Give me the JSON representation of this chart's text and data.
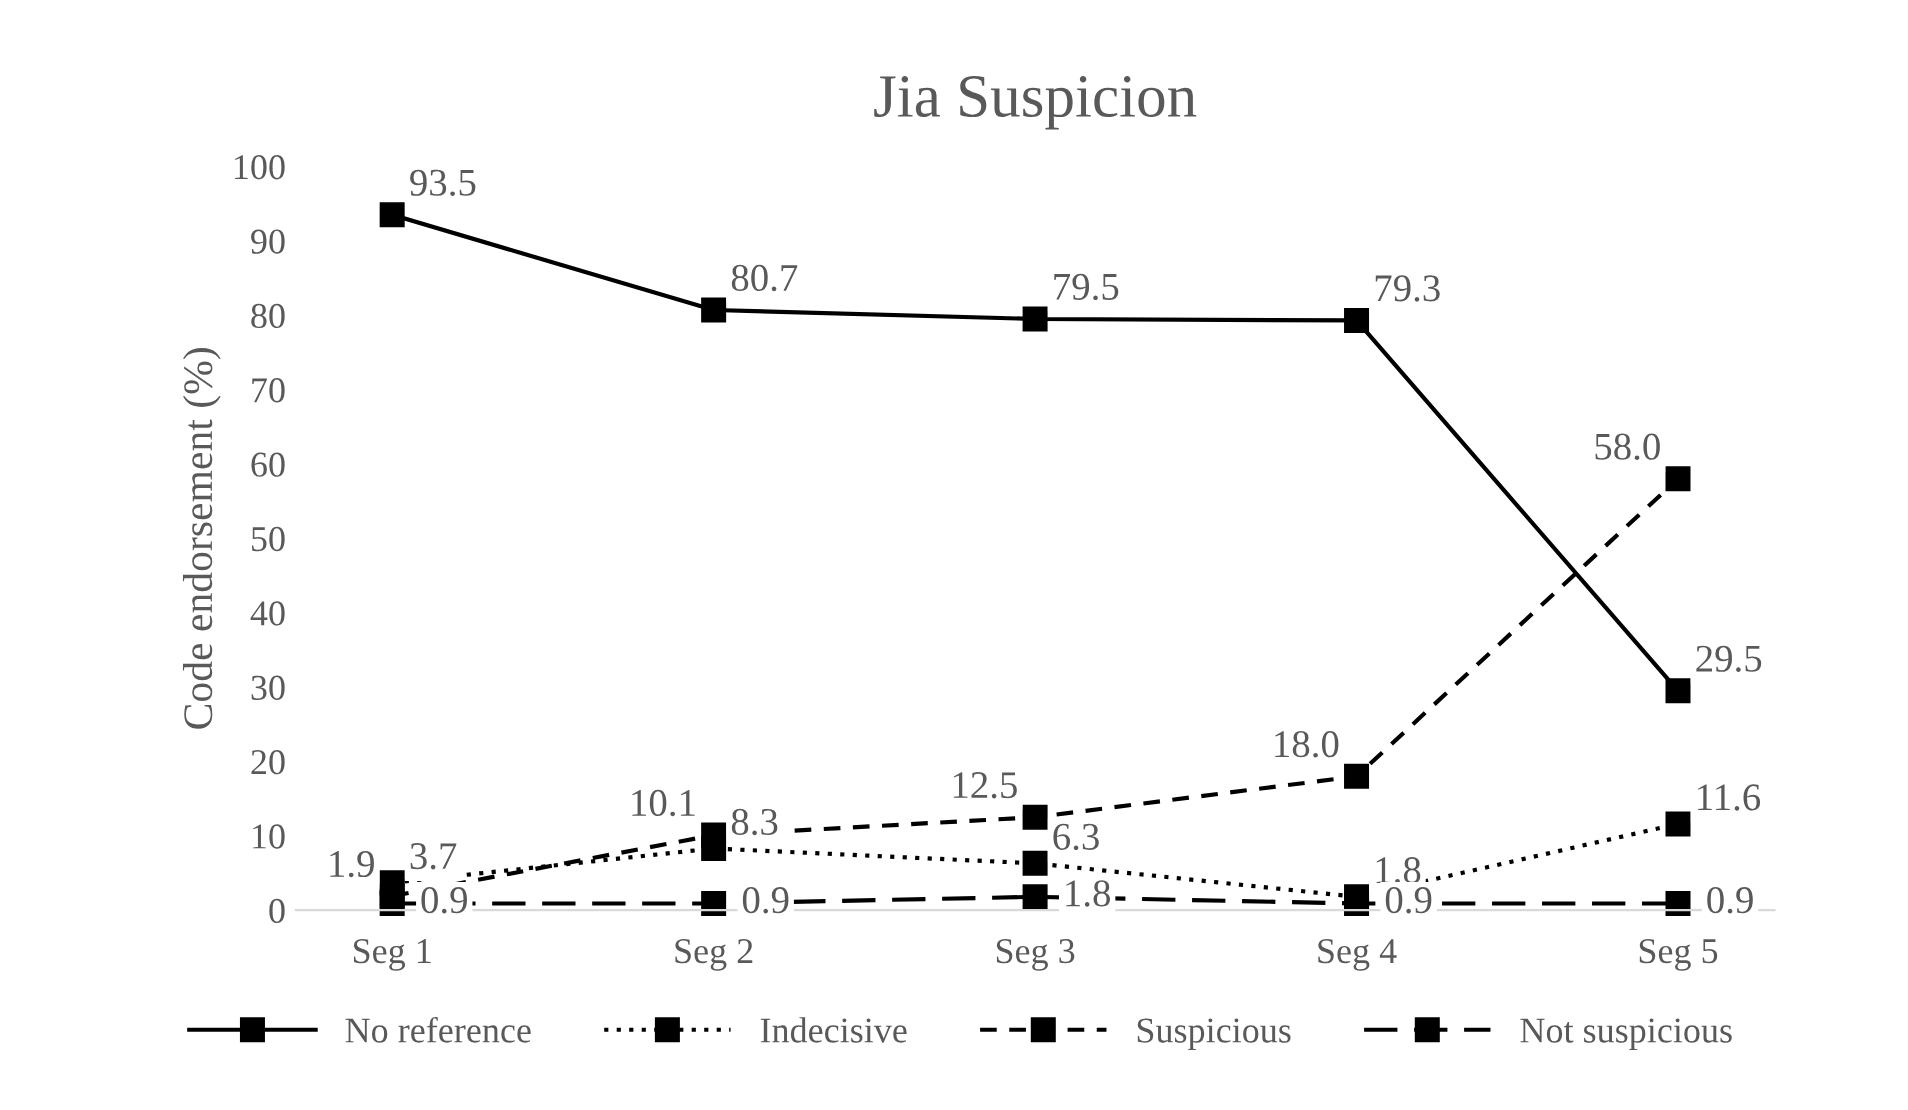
{
  "chart_data": {
    "type": "line",
    "title": "Jia Suspicion",
    "ylabel": "Code endorsement (%)",
    "categories": [
      "Seg 1",
      "Seg 2",
      "Seg 3",
      "Seg 4",
      "Seg 5"
    ],
    "ylim": [
      0,
      100
    ],
    "yticks": [
      0,
      10,
      20,
      30,
      40,
      50,
      60,
      70,
      80,
      90,
      100
    ],
    "grid": false,
    "legend": "bottom",
    "marker": "square",
    "series": [
      {
        "name": "No reference",
        "color": "#000000",
        "line_style": "solid",
        "values": [
          93.5,
          80.7,
          79.5,
          79.3,
          29.5
        ],
        "value_labels": [
          "93.5",
          "80.7",
          "79.5",
          "79.3",
          "29.5"
        ]
      },
      {
        "name": "Indecisive",
        "color": "#000000",
        "line_style": "dotted",
        "values": [
          3.7,
          8.3,
          6.3,
          1.8,
          11.6
        ],
        "value_labels": [
          "3.7",
          "8.3",
          "6.3",
          "1.8",
          "11.6"
        ]
      },
      {
        "name": "Suspicious",
        "color": "#000000",
        "line_style": "dashed",
        "values": [
          1.9,
          10.1,
          12.5,
          18.0,
          58.0
        ],
        "value_labels": [
          "1.9",
          "10.1",
          "12.5",
          "18.0",
          "58.0"
        ]
      },
      {
        "name": "Not suspicious",
        "color": "#000000",
        "line_style": "longdash",
        "values": [
          0.9,
          0.9,
          1.8,
          0.9,
          0.9
        ],
        "value_labels": [
          "0.9",
          "0.9",
          "1.8",
          "0.9",
          "0.9"
        ]
      }
    ]
  }
}
